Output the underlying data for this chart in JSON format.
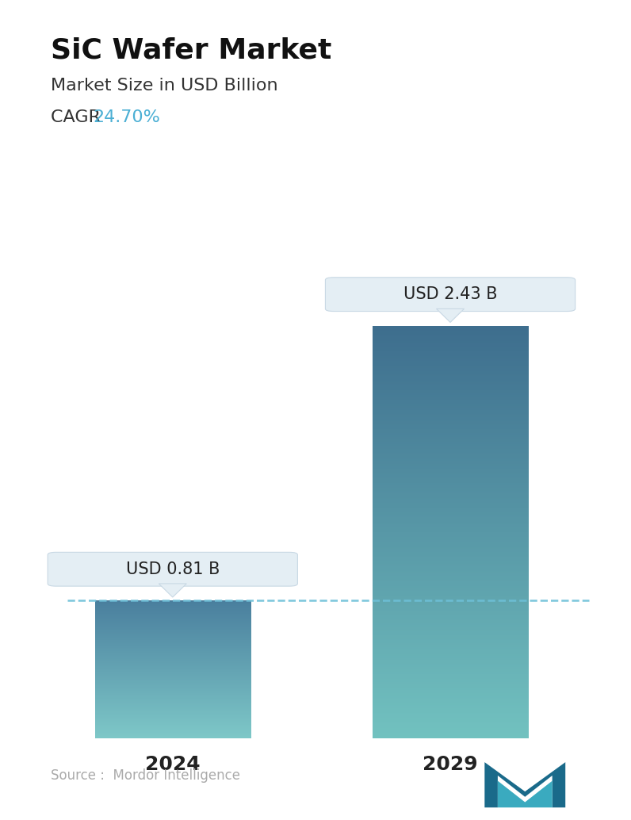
{
  "title": "SiC Wafer Market",
  "subtitle": "Market Size in USD Billion",
  "cagr_label": "CAGR ",
  "cagr_value": "24.70%",
  "cagr_color": "#4BAFD4",
  "categories": [
    "2024",
    "2029"
  ],
  "values": [
    0.81,
    2.43
  ],
  "bar_labels": [
    "USD 0.81 B",
    "USD 2.43 B"
  ],
  "bar_top_color_1": "#4A7F9E",
  "bar_bottom_color_1": "#7EC8C8",
  "bar_top_color_2": "#3E6E8E",
  "bar_bottom_color_2": "#72C2C0",
  "source_text": "Source :  Mordor Intelligence",
  "source_color": "#aaaaaa",
  "background_color": "#ffffff",
  "dashed_line_color": "#6EC0D8",
  "callout_bg": "#E4EEF4",
  "callout_border": "#C8D8E4",
  "ylim": [
    0,
    2.9
  ],
  "title_fontsize": 26,
  "subtitle_fontsize": 16,
  "cagr_fontsize": 16,
  "tick_fontsize": 18,
  "label_fontsize": 15
}
